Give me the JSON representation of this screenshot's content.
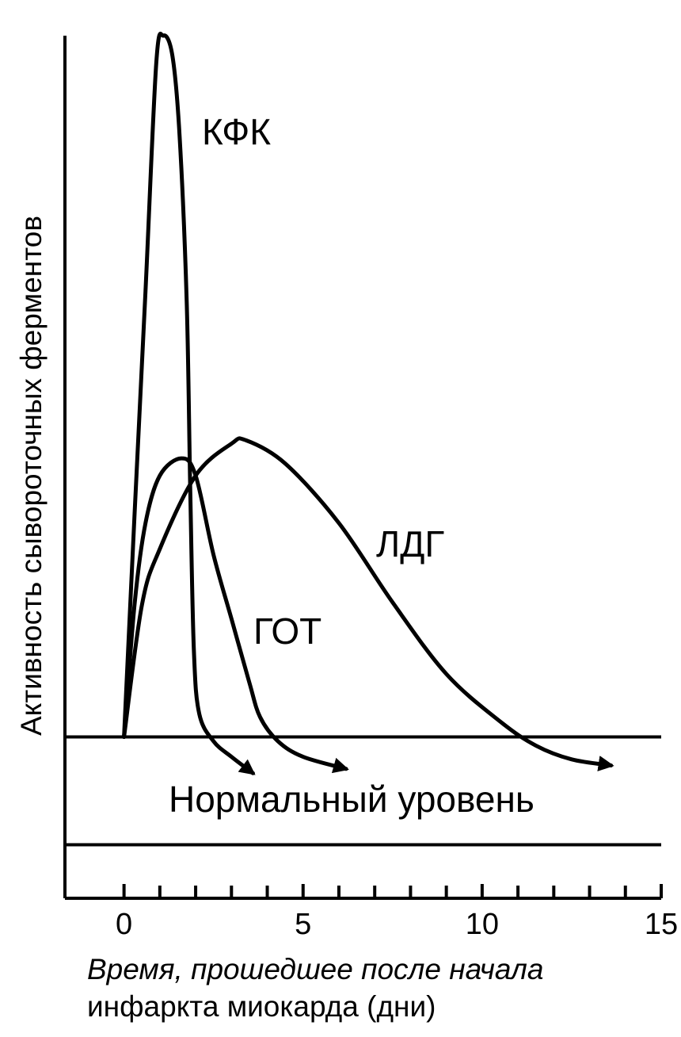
{
  "chart_data": {
    "type": "line",
    "ylabel": "Активность сывороточных ферментов",
    "xlabel": [
      "Время, прошедшее после начала",
      "инфаркта миокарда (дни)"
    ],
    "normal_label": "Нормальный уровень",
    "normal_range": [
      6.2,
      18.7
    ],
    "xlim": [
      -1.65,
      15
    ],
    "ylim": [
      0,
      100
    ],
    "xticks": [
      0,
      5,
      10,
      15
    ],
    "xminor_ticks": [
      1,
      2,
      3,
      4,
      6,
      7,
      8,
      9,
      11,
      12,
      13,
      14
    ],
    "color": "#000000",
    "series": [
      {
        "name": "КФК",
        "x": [
          0,
          0.3,
          0.6,
          0.9,
          1.1,
          1.35,
          1.55,
          1.75,
          1.85,
          1.95,
          2.1,
          2.5,
          3.0,
          3.6
        ],
        "values": [
          18.7,
          45,
          70.4,
          96.8,
          100,
          97.7,
          88.5,
          69.2,
          47.2,
          28.8,
          21.4,
          18.2,
          16.4,
          14.5
        ]
      },
      {
        "name": "ГОТ",
        "x": [
          0,
          0.3,
          0.6,
          1.0,
          1.6,
          2.0,
          2.5,
          3.0,
          3.5,
          3.8,
          4.3,
          5.0,
          6.2
        ],
        "values": [
          18.7,
          34.3,
          43.5,
          49,
          51,
          49,
          39.8,
          32.4,
          25,
          21,
          18.2,
          16.4,
          15
        ]
      },
      {
        "name": "ЛДГ",
        "x": [
          0,
          0.5,
          1.0,
          2.0,
          3.0,
          3.4,
          4.5,
          6.0,
          7.5,
          9.0,
          10.5,
          11.5,
          12.5,
          13.6
        ],
        "values": [
          18.7,
          34,
          40.5,
          49,
          52.7,
          53.1,
          50.4,
          43.5,
          34.3,
          26,
          20.5,
          17.7,
          16.1,
          15.4
        ]
      }
    ]
  }
}
